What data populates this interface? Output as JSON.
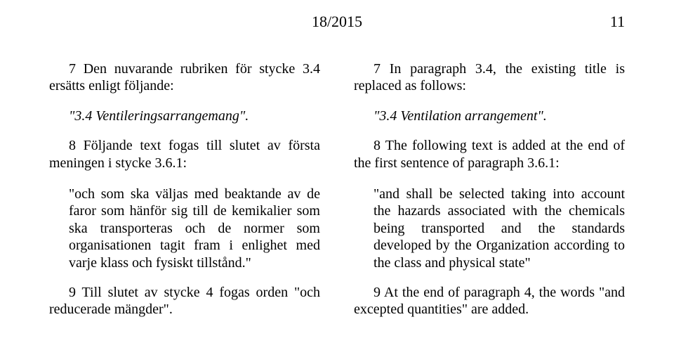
{
  "header": {
    "issue": "18/2015",
    "page_number": "11"
  },
  "left": {
    "p1": "7 Den nuvarande rubriken för stycke 3.4 ersätts enligt följande:",
    "p2": "\"3.4 Ventileringsarrangemang\".",
    "p3": "8 Följande text fogas till slutet av första meningen i stycke 3.6.1:",
    "p4": "\"och som ska väljas med beaktande av de faror som hänför sig till de kemikalier som ska transporteras och de normer som organisationen tagit fram i enlighet med varje klass och fysiskt tillstånd.\"",
    "p5": "9 Till slutet av stycke 4 fogas orden \"och reducerade mängder\"."
  },
  "right": {
    "p1": "7 In paragraph 3.4, the existing title is replaced as follows:",
    "p2": "\"3.4 Ventilation arrangement\".",
    "p3": "8 The following text is added at the end of the first sentence of paragraph 3.6.1:",
    "p4": "\"and shall be selected taking into account the hazards associated with the chemicals being transported and the standards developed by the Organization according to the class and physical state\"",
    "p5": "9 At the end of paragraph 4, the words \"and excepted quantities\" are added."
  }
}
